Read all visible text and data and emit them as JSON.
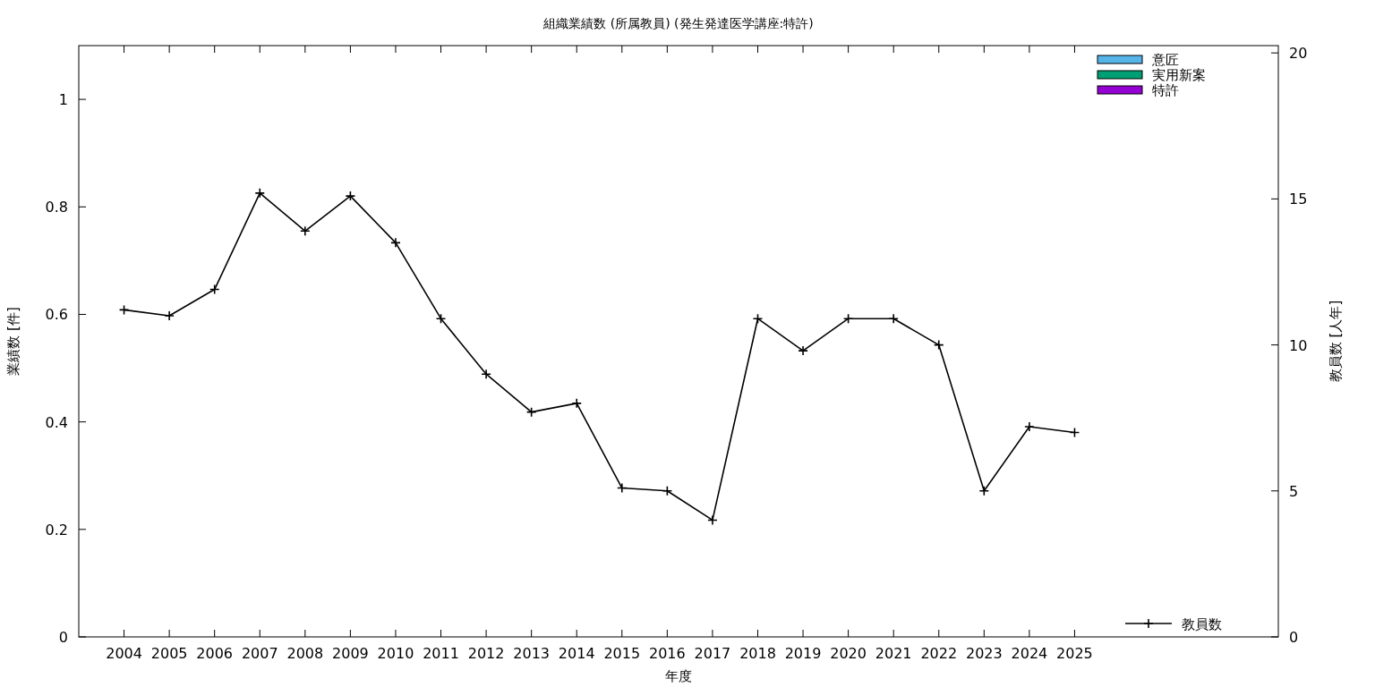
{
  "chart_data": {
    "type": "bar",
    "title": "組織業績数 (所属教員) (発生発達医学講座:特許)",
    "xlabel": "年度",
    "ylabel": "業績数 [件]",
    "y2label": "教員数 [人年]",
    "x": [
      2004,
      2005,
      2006,
      2007,
      2008,
      2009,
      2010,
      2011,
      2012,
      2013,
      2014,
      2015,
      2016,
      2017,
      2018,
      2019,
      2020,
      2021,
      2022,
      2023,
      2024,
      2025
    ],
    "xlim": [
      2003,
      2029.5
    ],
    "xticks": [
      2004,
      2005,
      2006,
      2007,
      2008,
      2009,
      2010,
      2011,
      2012,
      2013,
      2014,
      2015,
      2016,
      2017,
      2018,
      2019,
      2020,
      2021,
      2022,
      2023,
      2024,
      2025
    ],
    "ylim": [
      0,
      1.1
    ],
    "yticks": [
      0,
      0.2,
      0.4,
      0.6,
      0.8,
      1
    ],
    "y2lim": [
      0,
      20.25
    ],
    "y2ticks": [
      0,
      5,
      10,
      15,
      20
    ],
    "legend": "right",
    "grid": false,
    "series": [
      {
        "name": "意匠",
        "color": "#56b4e9",
        "values": [
          0,
          0,
          0,
          0,
          0,
          0,
          0,
          0,
          0,
          0,
          0,
          0,
          0,
          0,
          0,
          0,
          0,
          0,
          0,
          0,
          0,
          0
        ]
      },
      {
        "name": "実用新案",
        "color": "#009e73",
        "values": [
          0,
          0,
          0,
          0,
          0,
          0,
          0,
          0,
          0,
          0,
          0,
          0,
          0,
          0,
          0,
          0,
          0,
          0,
          0,
          0,
          0,
          0
        ]
      },
      {
        "name": "特許",
        "color": "#9400d3",
        "values": [
          0,
          0,
          0,
          0,
          0,
          0,
          0,
          0,
          0,
          0,
          0,
          0,
          0,
          0,
          0,
          0,
          0,
          0,
          0,
          0,
          0,
          0
        ]
      },
      {
        "name": "教員数",
        "type": "line",
        "axis": "y2",
        "color": "#000000",
        "marker": "cross",
        "values": [
          11.2,
          11.0,
          11.9,
          15.2,
          13.9,
          15.1,
          13.5,
          10.9,
          9.0,
          7.7,
          8.0,
          5.1,
          5.0,
          4.0,
          10.9,
          9.8,
          10.9,
          10.9,
          10.0,
          5.0,
          7.2,
          7.0
        ]
      }
    ]
  }
}
